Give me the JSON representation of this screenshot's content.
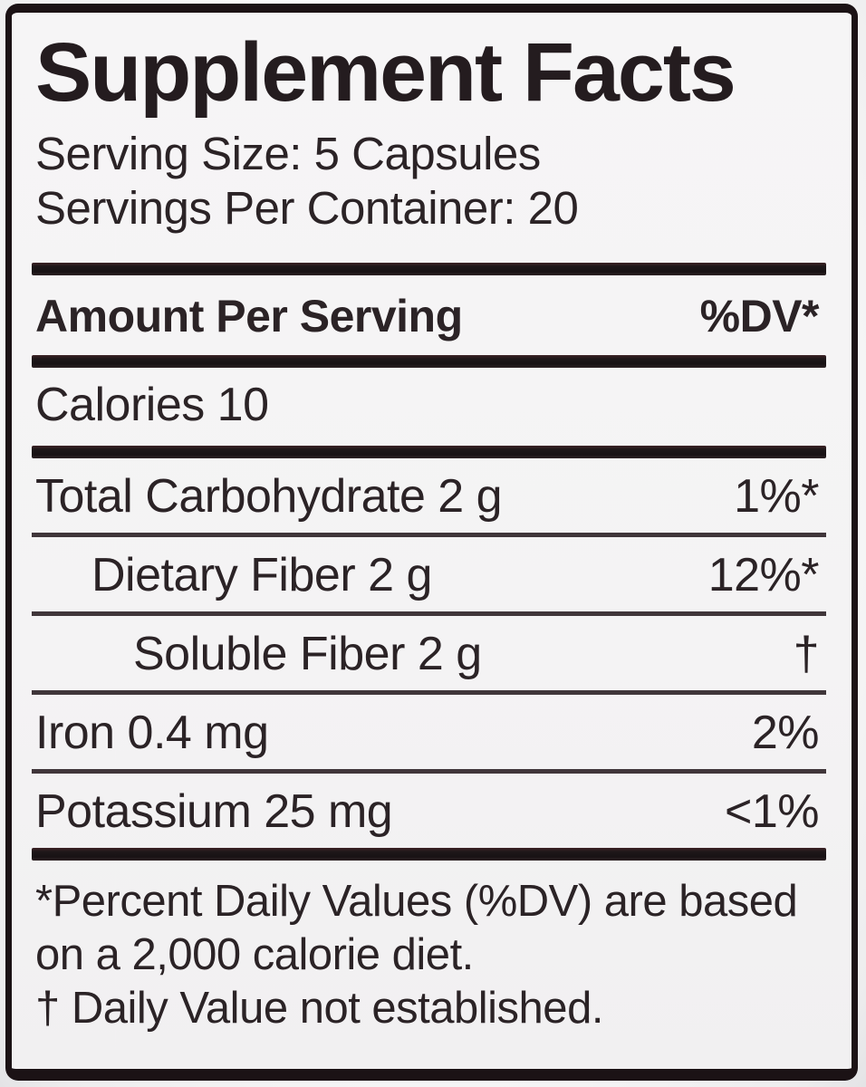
{
  "label": {
    "title": "Supplement Facts",
    "serving_size": "Serving Size: 5 Capsules",
    "servings_per_container": "Servings Per Container: 20",
    "header": {
      "amount_per_serving": "Amount Per Serving",
      "dv_column": "%DV*"
    },
    "calories": "Calories 10",
    "rows": [
      {
        "name": "Total Carbohydrate 2 g",
        "dv": "1%*",
        "indent": 0
      },
      {
        "name": "Dietary Fiber 2 g",
        "dv": "12%*",
        "indent": 1
      },
      {
        "name": "Soluble Fiber 2 g",
        "dv": "†",
        "indent": 2
      },
      {
        "name": "Iron 0.4 mg",
        "dv": "2%",
        "indent": 0
      },
      {
        "name": "Potassium 25 mg",
        "dv": "<1%",
        "indent": 0
      }
    ],
    "footnotes": [
      "*Percent Daily Values (%DV) are based on a 2,000 calorie diet.",
      "† Daily Value not established."
    ],
    "colors": {
      "text": "#2b2326",
      "label_background": "#f4f3f4",
      "border": "#1b1215",
      "thick_bar": "#1e1719",
      "thin_rule": "#40363a"
    }
  }
}
